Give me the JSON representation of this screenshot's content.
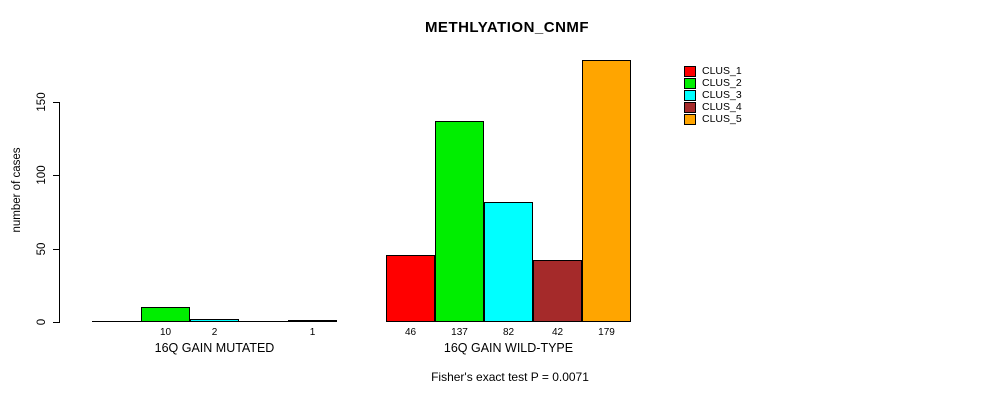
{
  "chart_data": {
    "type": "bar",
    "title": "METHLYATION_CNMF",
    "xlabel": "",
    "ylabel": "number of cases",
    "ylim": [
      0,
      185
    ],
    "yticks": [
      0,
      50,
      100,
      150
    ],
    "grid": false,
    "legend_position": "top-right",
    "categories": [
      "16Q GAIN MUTATED",
      "16Q GAIN WILD-TYPE"
    ],
    "series": [
      {
        "name": "CLUS_1",
        "color": "#ff0000",
        "values": [
          0,
          46
        ]
      },
      {
        "name": "CLUS_2",
        "color": "#00ee00",
        "values": [
          10,
          137
        ]
      },
      {
        "name": "CLUS_3",
        "color": "#00ffff",
        "values": [
          2,
          82
        ]
      },
      {
        "name": "CLUS_4",
        "color": "#a52a2a",
        "values": [
          0,
          42
        ]
      },
      {
        "name": "CLUS_5",
        "color": "#ffa500",
        "values": [
          1,
          179
        ]
      }
    ],
    "bar_border_color": "#000000",
    "zero_bars_drawn_as_flat_lines": true,
    "value_labels_shown_only_when_nonzero": true,
    "annotation": "Fisher's exact test P = 0.0071"
  }
}
